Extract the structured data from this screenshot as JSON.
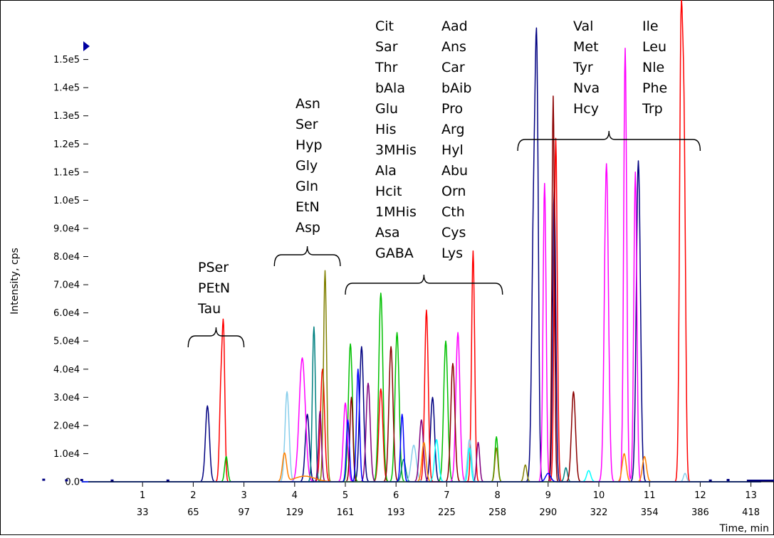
{
  "chart_data": {
    "type": "line",
    "title": "",
    "xlabel": "Time, min",
    "ylabel": "Intensity, cps",
    "xlim": [
      -1.0,
      13.2
    ],
    "ylim": [
      0,
      158000
    ],
    "yticks": [
      {
        "value": 0,
        "label": "0.0"
      },
      {
        "value": 10000,
        "label": "1.0e4"
      },
      {
        "value": 20000,
        "label": "2.0e4"
      },
      {
        "value": 30000,
        "label": "3.0e4"
      },
      {
        "value": 40000,
        "label": "4.0e4"
      },
      {
        "value": 50000,
        "label": "5.0e4"
      },
      {
        "value": 60000,
        "label": "6.0e4"
      },
      {
        "value": 70000,
        "label": "7.0e4"
      },
      {
        "value": 80000,
        "label": "8.0e4"
      },
      {
        "value": 90000,
        "label": "9.0e4"
      },
      {
        "value": 100000,
        "label": "1.0e5"
      },
      {
        "value": 110000,
        "label": "1.1e5"
      },
      {
        "value": 120000,
        "label": "1.2e5"
      },
      {
        "value": 130000,
        "label": "1.3e5"
      },
      {
        "value": 140000,
        "label": "1.4e5"
      },
      {
        "value": 150000,
        "label": "1.5e5"
      }
    ],
    "xticks": [
      {
        "value": 1,
        "label": "1",
        "scan": "33"
      },
      {
        "value": 2,
        "label": "2",
        "scan": "65"
      },
      {
        "value": 3,
        "label": "3",
        "scan": "97"
      },
      {
        "value": 4,
        "label": "4",
        "scan": "129"
      },
      {
        "value": 5,
        "label": "5",
        "scan": "161"
      },
      {
        "value": 6,
        "label": "6",
        "scan": "193"
      },
      {
        "value": 7,
        "label": "7",
        "scan": "225"
      },
      {
        "value": 8,
        "label": "8",
        "scan": "258"
      },
      {
        "value": 9,
        "label": "9",
        "scan": "290"
      },
      {
        "value": 10,
        "label": "10",
        "scan": "322"
      },
      {
        "value": 11,
        "label": "11",
        "scan": "354"
      },
      {
        "value": 12,
        "label": "12",
        "scan": "386"
      },
      {
        "value": 13,
        "label": "13",
        "scan": "418"
      }
    ],
    "grid": false,
    "legend": "none",
    "groups": [
      {
        "labels": [
          "PSer",
          "PEtN",
          "Tau"
        ],
        "range": [
          1.9,
          3.0
        ]
      },
      {
        "labels": [
          "Asn",
          "Ser",
          "Hyp",
          "Gly",
          "Gln",
          "EtN",
          "Asp"
        ],
        "range": [
          3.6,
          4.9
        ]
      },
      {
        "labels": [
          "Cit",
          "Sar",
          "Thr",
          "bAla",
          "Glu",
          "His",
          "3MHis",
          "Ala",
          "Hcit",
          "1MHis",
          "Asa",
          "GABA"
        ],
        "labels2": [
          "Aad",
          "Ans",
          "Car",
          "bAib",
          "Pro",
          "Arg",
          "Hyl",
          "Abu",
          "Orn",
          "Cth",
          "Cys",
          "Lys"
        ],
        "range": [
          5.0,
          8.1
        ]
      },
      {
        "labels": [
          "Val",
          "Met",
          "Tyr",
          "Nva",
          "Hcy"
        ],
        "labels2": [
          "Ile",
          "Leu",
          "Nle",
          "Phe",
          "Trp"
        ],
        "range": [
          8.4,
          12.0
        ]
      }
    ],
    "series": [
      {
        "color": "#000080",
        "peaks": [
          [
            2.28,
            27000,
            0.04
          ],
          [
            4.25,
            24000,
            0.04
          ],
          [
            5.32,
            48000,
            0.04
          ],
          [
            6.72,
            30000,
            0.04
          ],
          [
            8.72,
            100000,
            0.04
          ],
          [
            8.78,
            122000,
            0.03
          ],
          [
            9.12,
            104000,
            0.03
          ],
          [
            10.78,
            114000,
            0.04
          ]
        ]
      },
      {
        "color": "#ff0000",
        "peaks": [
          [
            2.55,
            35000,
            0.03
          ],
          [
            2.6,
            47000,
            0.025
          ],
          [
            4.55,
            40000,
            0.04
          ],
          [
            5.7,
            33000,
            0.04
          ],
          [
            6.6,
            61000,
            0.035
          ],
          [
            7.52,
            82000,
            0.03
          ],
          [
            9.15,
            122000,
            0.03
          ],
          [
            11.62,
            150000,
            0.03
          ],
          [
            11.68,
            118000,
            0.03
          ]
        ]
      },
      {
        "color": "#00c000",
        "peaks": [
          [
            2.65,
            9000,
            0.03
          ],
          [
            5.1,
            49000,
            0.04
          ],
          [
            5.7,
            67000,
            0.04
          ],
          [
            6.02,
            53000,
            0.04
          ],
          [
            6.98,
            50000,
            0.04
          ],
          [
            7.98,
            16000,
            0.03
          ]
        ]
      },
      {
        "color": "#ff00ff",
        "peaks": [
          [
            4.15,
            44000,
            0.06
          ],
          [
            5.0,
            28000,
            0.04
          ],
          [
            7.22,
            53000,
            0.04
          ],
          [
            8.93,
            106000,
            0.03
          ],
          [
            10.15,
            113000,
            0.04
          ],
          [
            10.52,
            154000,
            0.03
          ],
          [
            10.72,
            110000,
            0.03
          ]
        ]
      },
      {
        "color": "#008080",
        "peaks": [
          [
            4.38,
            55000,
            0.03
          ],
          [
            6.15,
            8000,
            0.04
          ],
          [
            9.35,
            5000,
            0.03
          ]
        ]
      },
      {
        "color": "#808000",
        "peaks": [
          [
            4.6,
            75000,
            0.03
          ],
          [
            7.98,
            12000,
            0.03
          ],
          [
            8.55,
            6000,
            0.03
          ]
        ]
      },
      {
        "color": "#8b0000",
        "peaks": [
          [
            5.12,
            30000,
            0.03
          ],
          [
            5.9,
            48000,
            0.04
          ],
          [
            7.12,
            42000,
            0.04
          ],
          [
            9.1,
            137000,
            0.025
          ],
          [
            9.5,
            32000,
            0.04
          ]
        ]
      },
      {
        "color": "#87ceeb",
        "peaks": [
          [
            3.85,
            32000,
            0.04
          ],
          [
            6.35,
            13000,
            0.05
          ],
          [
            7.45,
            15000,
            0.04
          ],
          [
            11.7,
            3000,
            0.03
          ]
        ]
      },
      {
        "color": "#800080",
        "peaks": [
          [
            4.5,
            25000,
            0.03
          ],
          [
            5.45,
            35000,
            0.04
          ],
          [
            6.5,
            22000,
            0.04
          ],
          [
            7.62,
            14000,
            0.03
          ]
        ]
      },
      {
        "color": "#ff8000",
        "peaks": [
          [
            3.8,
            10000,
            0.04
          ],
          [
            4.2,
            2000,
            0.2
          ],
          [
            6.55,
            14000,
            0.04
          ],
          [
            10.5,
            10000,
            0.04
          ],
          [
            10.9,
            9000,
            0.04
          ]
        ]
      },
      {
        "color": "#00ffff",
        "peaks": [
          [
            6.8,
            15000,
            0.04
          ],
          [
            7.45,
            12000,
            0.03
          ],
          [
            9.8,
            4000,
            0.04
          ]
        ]
      },
      {
        "color": "#0000ff",
        "peaks": [
          [
            5.05,
            22000,
            0.03
          ],
          [
            5.25,
            40000,
            0.03
          ],
          [
            6.12,
            24000,
            0.03
          ],
          [
            9.0,
            3000,
            0.05
          ]
        ]
      }
    ]
  }
}
